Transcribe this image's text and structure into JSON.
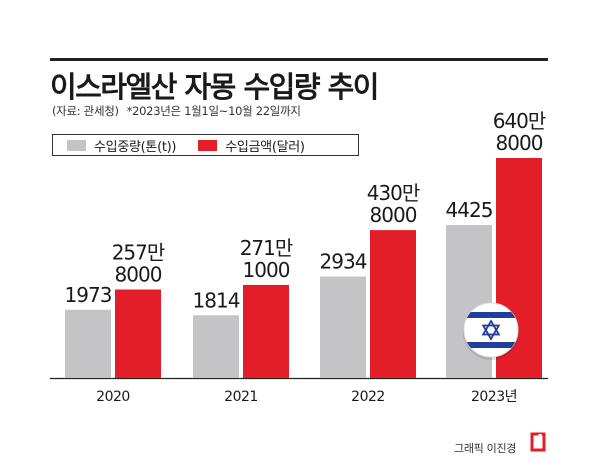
{
  "header": {
    "title": "이스라엘산 자몽 수입량 추이",
    "source": "(자료: 관세청)",
    "note": "*2023년은 1월1일~10월 22일까지"
  },
  "legend": {
    "weight_label": "수입중량(톤(t))",
    "amount_label": "수입금액(달러)"
  },
  "colors": {
    "weight": "#c4c4c6",
    "amount": "#e31e28",
    "flag_blue": "#1f3f9b"
  },
  "chart_data": {
    "type": "bar",
    "categories": [
      "2020",
      "2021",
      "2022",
      "2023년"
    ],
    "series": [
      {
        "name": "수입중량(톤(t))",
        "values": [
          1973,
          1814,
          2934,
          4425
        ],
        "labels": [
          [
            "1973"
          ],
          [
            "1814"
          ],
          [
            "2934"
          ],
          [
            "4425"
          ]
        ]
      },
      {
        "name": "수입금액(달러)",
        "values": [
          2578000,
          2711000,
          4308000,
          6408000
        ],
        "labels": [
          [
            "257만",
            "8000"
          ],
          [
            "271만",
            "1000"
          ],
          [
            "430만",
            "8000"
          ],
          [
            "640만",
            "8000"
          ]
        ]
      }
    ],
    "title": "이스라엘산 자몽 수입량 추이",
    "xlabel": "",
    "ylabel": "",
    "legend_position": "top-left",
    "grid": false,
    "annotations": [
      "israel-flag-icon"
    ]
  },
  "footer": {
    "credit": "그래픽 이진경"
  }
}
